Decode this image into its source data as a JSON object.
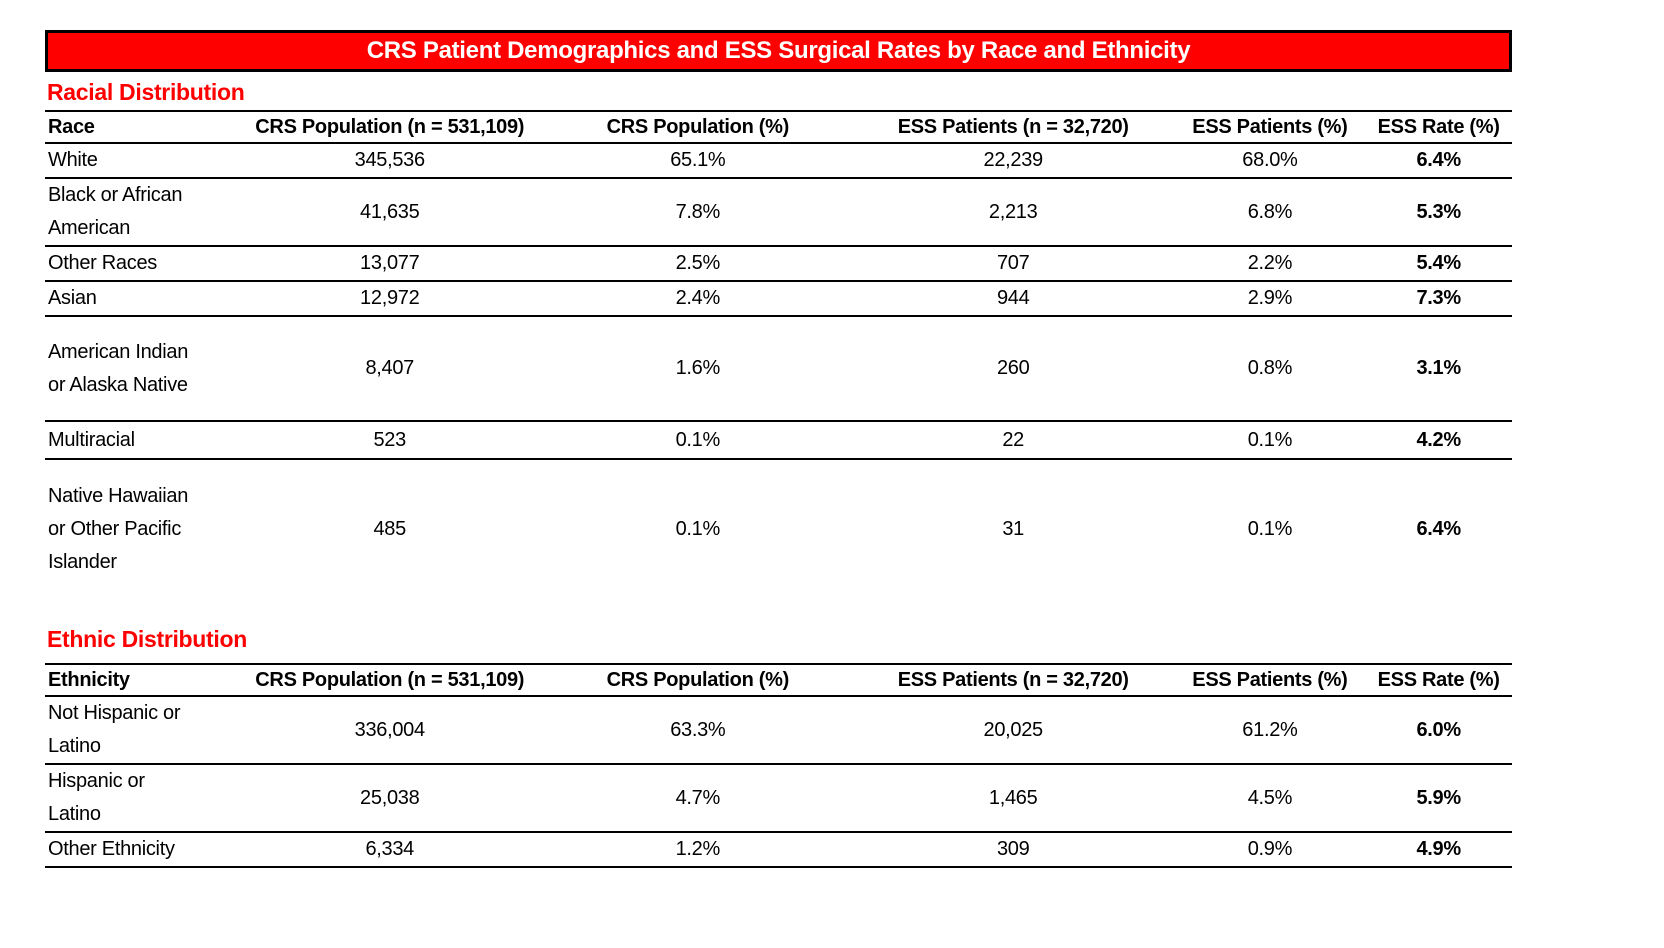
{
  "title_bar": {
    "text": "CRS Patient Demographics and ESS Surgical Rates by Race and Ethnicity"
  },
  "colors": {
    "accent_red": "#ff0000",
    "title_text": "#ffffff",
    "body_text": "#000000",
    "border": "#000000"
  },
  "sections": [
    {
      "heading": "Racial Distribution",
      "columns": [
        "Race",
        "CRS Population (n = 531,109)",
        "CRS Population (%)",
        "ESS Patients (n = 32,720)",
        "ESS Patients (%)",
        "ESS Rate (%)"
      ],
      "rows": [
        [
          "White",
          "345,536",
          "65.1%",
          "22,239",
          "68.0%",
          "6.4%"
        ],
        [
          "Black or African\nAmerican",
          "41,635",
          "7.8%",
          "2,213",
          "6.8%",
          "5.3%"
        ],
        [
          "Other Races",
          "13,077",
          "2.5%",
          "707",
          "2.2%",
          "5.4%"
        ],
        [
          "Asian",
          "12,972",
          "2.4%",
          "944",
          "2.9%",
          "7.3%"
        ],
        [
          "American Indian\nor Alaska Native",
          "8,407",
          "1.6%",
          "260",
          "0.8%",
          "3.1%"
        ],
        [
          "Multiracial",
          "523",
          "0.1%",
          "22",
          "0.1%",
          "4.2%"
        ],
        [
          "Native Hawaiian\nor Other Pacific\nIslander",
          "485",
          "0.1%",
          "31",
          "0.1%",
          "6.4%"
        ]
      ]
    },
    {
      "heading": "Ethnic Distribution",
      "columns": [
        "Ethnicity",
        "CRS Population (n = 531,109)",
        "CRS Population (%)",
        "ESS Patients (n = 32,720)",
        "ESS Patients (%)",
        "ESS Rate (%)"
      ],
      "rows": [
        [
          "Not Hispanic or\nLatino",
          "336,004",
          "63.3%",
          "20,025",
          "61.2%",
          "6.0%"
        ],
        [
          "Hispanic or\nLatino",
          "25,038",
          "4.7%",
          "1,465",
          "4.5%",
          "5.9%"
        ],
        [
          "Other Ethnicity",
          "6,334",
          "1.2%",
          "309",
          "0.9%",
          "4.9%"
        ]
      ]
    }
  ]
}
